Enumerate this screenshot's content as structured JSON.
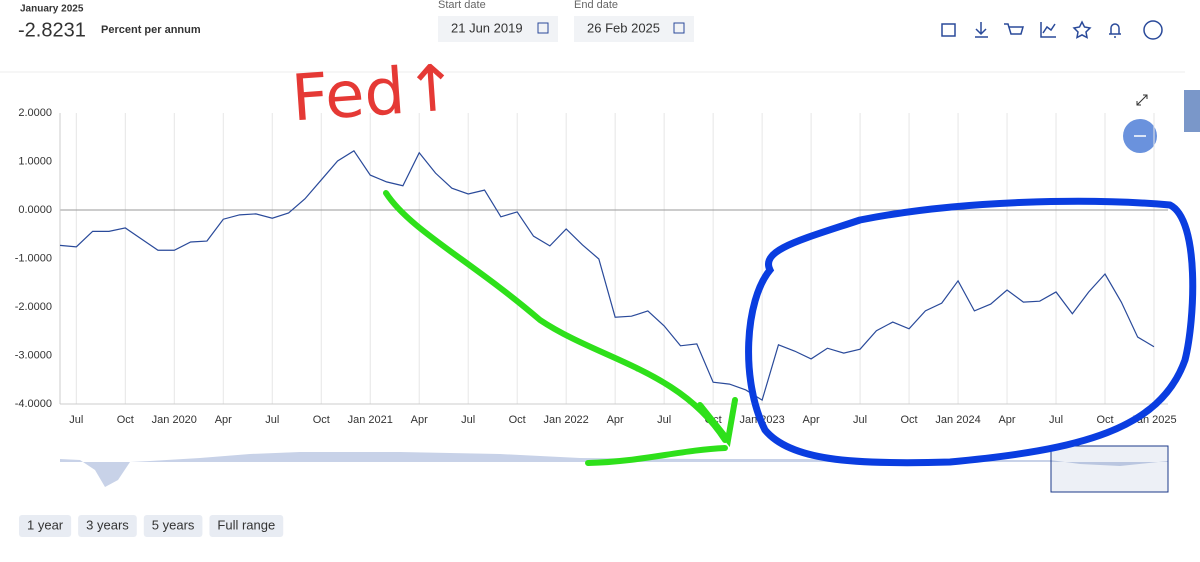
{
  "header": {
    "period": "January 2025",
    "value": "-2.8231",
    "unit": "Percent per annum",
    "start_label": "Start date",
    "start_date": "21 Jun 2019",
    "end_label": "End date",
    "end_date": "26 Feb 2025"
  },
  "range_buttons": [
    "1 year",
    "3 years",
    "5 years",
    "Full range"
  ],
  "chart_data": {
    "type": "line",
    "categories": [
      null,
      "Jul",
      null,
      null,
      "Oct",
      null,
      null,
      "Jan 2020",
      null,
      null,
      "Apr",
      null,
      null,
      "Jul",
      null,
      null,
      "Oct",
      null,
      null,
      "Jan 2021",
      null,
      null,
      "Apr",
      null,
      null,
      "Jul",
      null,
      null,
      "Oct",
      null,
      null,
      "Jan 2022",
      null,
      null,
      "Apr",
      null,
      null,
      "Jul",
      null,
      null,
      "Oct",
      null,
      null,
      "Jan 2023",
      null,
      null,
      "Apr",
      null,
      null,
      "Jul",
      null,
      null,
      "Oct",
      null,
      null,
      "Jan 2024",
      null,
      null,
      "Apr",
      null,
      null,
      "Jul",
      null,
      null,
      "Oct",
      null,
      null,
      "Jan 2025"
    ],
    "series": [
      {
        "color": "#2a4a9a",
        "values": [
          -0.73,
          -0.76,
          -0.44,
          -0.44,
          -0.37,
          -0.6,
          -0.83,
          -0.83,
          -0.66,
          -0.64,
          -0.19,
          -0.1,
          -0.08,
          -0.17,
          -0.06,
          0.23,
          0.62,
          1.01,
          1.22,
          0.72,
          0.58,
          0.5,
          1.18,
          0.76,
          0.45,
          0.33,
          0.41,
          -0.14,
          -0.04,
          -0.54,
          -0.74,
          -0.39,
          -0.72,
          -1.01,
          -2.21,
          -2.19,
          -2.08,
          -2.39,
          -2.8,
          -2.76,
          -3.55,
          -3.59,
          -3.71,
          -3.92,
          -2.78,
          -2.91,
          -3.07,
          -2.85,
          -2.95,
          -2.87,
          -2.49,
          -2.31,
          -2.45,
          -2.08,
          -1.92,
          -1.46,
          -2.08,
          -1.94,
          -1.65,
          -1.9,
          -1.88,
          -1.69,
          -2.14,
          -1.69,
          -1.32,
          -1.9,
          -2.62,
          -2.82
        ]
      }
    ],
    "ylim": [
      -4,
      2
    ],
    "yticks": [
      {
        "value": -4,
        "label": "-4.0000"
      },
      {
        "value": -3,
        "label": "-3.0000"
      },
      {
        "value": -2,
        "label": "-2.0000"
      },
      {
        "value": -1,
        "label": "-1.0000"
      },
      {
        "value": 0,
        "label": "0.0000"
      },
      {
        "value": 1,
        "label": "1.0000"
      },
      {
        "value": 2,
        "label": "2.0000"
      }
    ],
    "grid": "x",
    "annotations": [
      "Fed↑"
    ]
  }
}
